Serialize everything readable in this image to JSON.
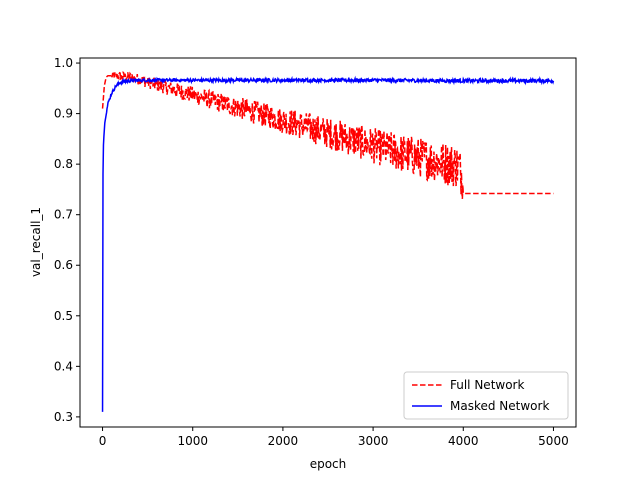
{
  "chart_data": {
    "type": "line",
    "title": "",
    "xlabel": "epoch",
    "ylabel": "val_recall_1",
    "xlim": [
      -250,
      5250
    ],
    "ylim": [
      0.28,
      1.01
    ],
    "x_ticks": [
      0,
      1000,
      2000,
      3000,
      4000,
      5000
    ],
    "y_ticks": [
      0.3,
      0.4,
      0.5,
      0.6,
      0.7,
      0.8,
      0.9,
      1.0
    ],
    "x_tick_labels": [
      "0",
      "1000",
      "2000",
      "3000",
      "4000",
      "5000"
    ],
    "y_tick_labels": [
      "0.3",
      "0.4",
      "0.5",
      "0.6",
      "0.7",
      "0.8",
      "0.9",
      "1.0"
    ],
    "grid": false,
    "legend": {
      "position": "lower-right"
    },
    "series": [
      {
        "name": "Full Network",
        "color": "#ff0000",
        "style": "dashed",
        "x": [
          0,
          20,
          40,
          60,
          100,
          150,
          200,
          250,
          300,
          400,
          500,
          600,
          700,
          800,
          900,
          1000,
          1100,
          1200,
          1300,
          1400,
          1500,
          1600,
          1700,
          1800,
          1900,
          2000,
          2100,
          2200,
          2300,
          2400,
          2500,
          2600,
          2700,
          2800,
          2900,
          3000,
          3100,
          3200,
          3300,
          3400,
          3500,
          3600,
          3700,
          3800,
          3900,
          3950,
          3990,
          4000,
          4500,
          5000
        ],
        "y": [
          0.91,
          0.955,
          0.972,
          0.975,
          0.975,
          0.975,
          0.974,
          0.973,
          0.972,
          0.968,
          0.962,
          0.957,
          0.952,
          0.947,
          0.942,
          0.937,
          0.932,
          0.927,
          0.922,
          0.917,
          0.912,
          0.907,
          0.902,
          0.897,
          0.892,
          0.887,
          0.882,
          0.877,
          0.872,
          0.867,
          0.862,
          0.857,
          0.852,
          0.847,
          0.842,
          0.837,
          0.832,
          0.827,
          0.822,
          0.818,
          0.814,
          0.81,
          0.806,
          0.802,
          0.798,
          0.795,
          0.775,
          0.742,
          0.742,
          0.742
        ],
        "noise_x_range": [
          100,
          3990
        ],
        "noise_amp_range": [
          0.008,
          0.045
        ]
      },
      {
        "name": "Masked Network",
        "color": "#0000ff",
        "style": "solid",
        "x": [
          0,
          5,
          10,
          20,
          30,
          40,
          50,
          60,
          80,
          100,
          150,
          200,
          300,
          400,
          500,
          1000,
          2000,
          3000,
          4000,
          5000
        ],
        "y": [
          0.31,
          0.78,
          0.84,
          0.87,
          0.89,
          0.9,
          0.91,
          0.92,
          0.93,
          0.94,
          0.955,
          0.962,
          0.965,
          0.966,
          0.966,
          0.966,
          0.966,
          0.966,
          0.965,
          0.965
        ],
        "noise_x_range": [
          10,
          5000
        ],
        "noise_amp_range": [
          0.003,
          0.004
        ]
      }
    ]
  }
}
